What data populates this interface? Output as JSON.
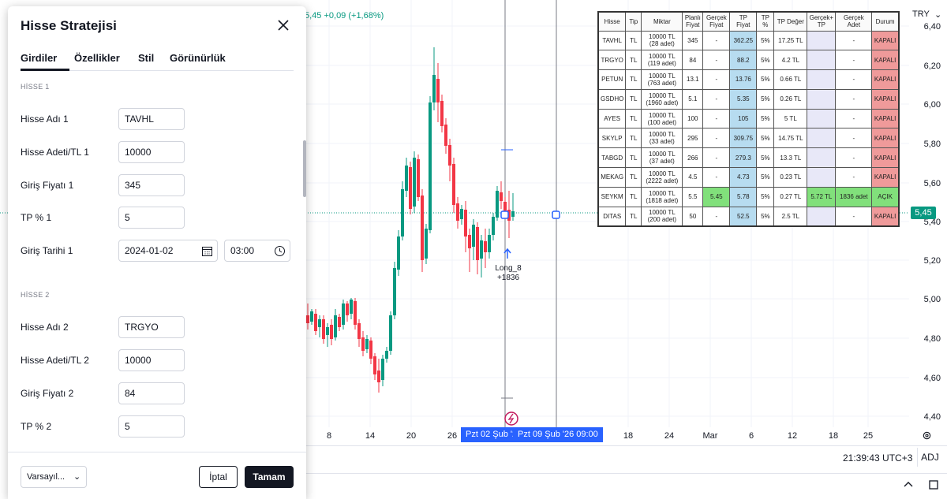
{
  "chart": {
    "ticker_change": "5,45  +0,09 (+1,68%)",
    "currency": "TRY",
    "current_price": "5,45",
    "price_labels": [
      "6,40",
      "6,20",
      "6,00",
      "5,80",
      "5,60",
      "5,40",
      "5,20",
      "5,00",
      "4,80",
      "4,60",
      "4,40"
    ],
    "time_labels": [
      "8",
      "14",
      "20",
      "26",
      "18",
      "24",
      "Mar",
      "6",
      "12",
      "18",
      "25"
    ],
    "time_sel_1": "Pzt 02 Şub '26",
    "time_sel_2": "Pzt 09 Şub '26   09:00",
    "marker_label": "Long_8",
    "marker_qty": "+1836",
    "clock": "21:39:43 UTC+3",
    "adj": "ADJ",
    "colors": {
      "up": "#089981",
      "down": "#f23645",
      "accent": "#2962ff"
    }
  },
  "table": {
    "headers": [
      "Hisse",
      "Tip",
      "Miktar",
      "Planlı Fiyat",
      "Gerçek Fiyat",
      "TP Fiyat",
      "TP %",
      "TP Değer",
      "Gerçek+ TP",
      "Gerçek Adet",
      "Durum"
    ],
    "rows": [
      [
        "TAVHL",
        "TL",
        "10000 TL (28 adet)",
        "345",
        "-",
        "362.25",
        "5%",
        "17.25 TL",
        "",
        "-",
        "KAPALI"
      ],
      [
        "TRGYO",
        "TL",
        "10000 TL (119 adet)",
        "84",
        "-",
        "88.2",
        "5%",
        "4.2 TL",
        "",
        "-",
        "KAPALI"
      ],
      [
        "PETUN",
        "TL",
        "10000 TL (763 adet)",
        "13.1",
        "-",
        "13.76",
        "5%",
        "0.66 TL",
        "",
        "-",
        "KAPALI"
      ],
      [
        "GSDHO",
        "TL",
        "10000 TL (1960 adet)",
        "5.1",
        "-",
        "5.35",
        "5%",
        "0.26 TL",
        "",
        "-",
        "KAPALI"
      ],
      [
        "AYES",
        "TL",
        "10000 TL (100 adet)",
        "100",
        "-",
        "105",
        "5%",
        "5 TL",
        "",
        "-",
        "KAPALI"
      ],
      [
        "SKYLP",
        "TL",
        "10000 TL (33 adet)",
        "295",
        "-",
        "309.75",
        "5%",
        "14.75 TL",
        "",
        "-",
        "KAPALI"
      ],
      [
        "TABGD",
        "TL",
        "10000 TL (37 adet)",
        "266",
        "-",
        "279.3",
        "5%",
        "13.3 TL",
        "",
        "-",
        "KAPALI"
      ],
      [
        "MEKAG",
        "TL",
        "10000 TL (2222 adet)",
        "4.5",
        "-",
        "4.73",
        "5%",
        "0.23 TL",
        "",
        "-",
        "KAPALI"
      ],
      [
        "SEYKM",
        "TL",
        "10000 TL (1818 adet)",
        "5.5",
        "5.45",
        "5.78",
        "5%",
        "0.27 TL",
        "5.72 TL",
        "1836 adet",
        "AÇIK"
      ],
      [
        "DITAS",
        "TL",
        "10000 TL (200 adet)",
        "50",
        "-",
        "52.5",
        "5%",
        "2.5 TL",
        "",
        "-",
        "KAPALI"
      ]
    ]
  },
  "dialog": {
    "title": "Hisse Stratejisi",
    "tabs": [
      "Girdiler",
      "Özellikler",
      "Stil",
      "Görünürlük"
    ],
    "section1": "HİSSE 1",
    "section2": "HİSSE 2",
    "fields1": {
      "name_label": "Hisse Adı 1",
      "name_value": "TAVHL",
      "qty_label": "Hisse Adeti/TL 1",
      "qty_value": "10000",
      "price_label": "Giriş Fiyatı 1",
      "price_value": "345",
      "tp_label": "TP % 1",
      "tp_value": "5",
      "date_label": "Giriş Tarihi 1",
      "date_value": "2024-01-02",
      "time_value": "03:00"
    },
    "fields2": {
      "name_label": "Hisse Adı 2",
      "name_value": "TRGYO",
      "qty_label": "Hisse Adeti/TL 2",
      "qty_value": "10000",
      "price_label": "Giriş Fiyatı 2",
      "price_value": "84",
      "tp_label": "TP % 2",
      "tp_value": "5"
    },
    "defaults": "Varsayıl...",
    "cancel": "İptal",
    "ok": "Tamam"
  }
}
